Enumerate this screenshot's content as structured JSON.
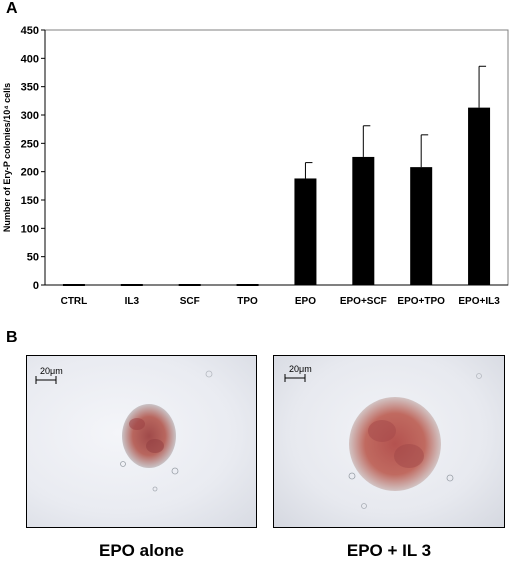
{
  "panel_a_label": "A",
  "panel_b_label": "B",
  "chart_data": {
    "type": "bar",
    "ylabel": "Number of Ery-P colonies/10⁴ cells",
    "ylim": [
      0,
      450
    ],
    "yticks": [
      0,
      50,
      100,
      150,
      200,
      250,
      300,
      350,
      400,
      450
    ],
    "categories": [
      "CTRL",
      "IL3",
      "SCF",
      "TPO",
      "EPO",
      "EPO+SCF",
      "EPO+TPO",
      "EPO+IL3"
    ],
    "values": [
      0,
      0,
      0,
      0,
      188,
      226,
      208,
      313
    ],
    "error_plus": [
      0,
      0,
      0,
      0,
      28,
      55,
      57,
      73
    ],
    "bar_color": "#000000",
    "grid": false
  },
  "micrographs": [
    {
      "caption": "EPO alone",
      "scale_bar": "20μm"
    },
    {
      "caption": "EPO + IL 3",
      "scale_bar": "20μm"
    }
  ]
}
